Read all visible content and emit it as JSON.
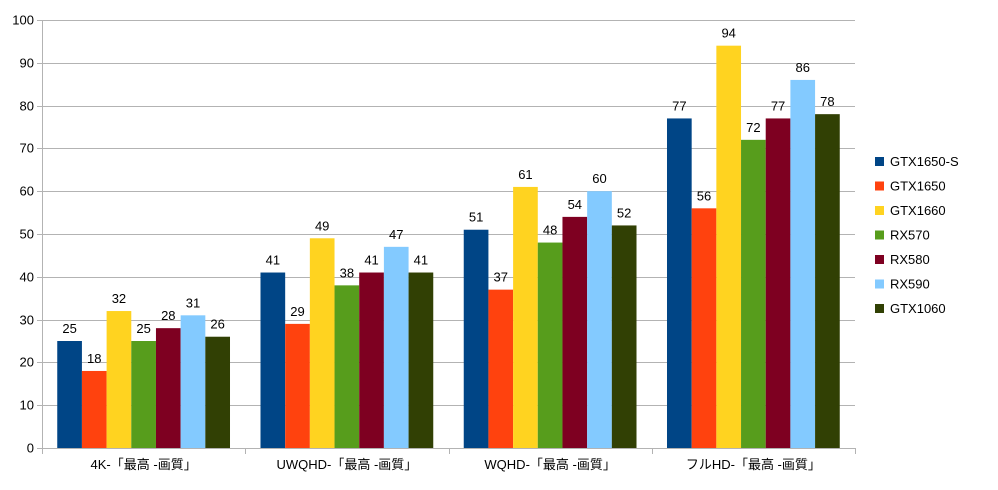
{
  "chart_data": {
    "type": "bar",
    "title": "",
    "xlabel": "",
    "ylabel": "",
    "ylim": [
      0,
      100
    ],
    "ytick_step": 10,
    "grid": true,
    "legend_position": "right",
    "categories": [
      "4K-「最高 -画質」",
      "UWQHD-「最高 -画質」",
      "WQHD-「最高 -画質」",
      "フルHD-「最高 -画質」"
    ],
    "series": [
      {
        "name": "GTX1650-S",
        "color": "#004586",
        "values": [
          25,
          41,
          51,
          77
        ]
      },
      {
        "name": "GTX1650",
        "color": "#ff420e",
        "values": [
          18,
          29,
          37,
          56
        ]
      },
      {
        "name": "GTX1660",
        "color": "#ffd320",
        "values": [
          32,
          49,
          61,
          94
        ]
      },
      {
        "name": "RX570",
        "color": "#579d1c",
        "values": [
          25,
          38,
          48,
          72
        ]
      },
      {
        "name": "RX580",
        "color": "#7e0021",
        "values": [
          28,
          41,
          54,
          77
        ]
      },
      {
        "name": "RX590",
        "color": "#83caff",
        "values": [
          31,
          47,
          60,
          86
        ]
      },
      {
        "name": "GTX1060",
        "color": "#314004",
        "values": [
          26,
          41,
          52,
          78
        ]
      }
    ]
  }
}
